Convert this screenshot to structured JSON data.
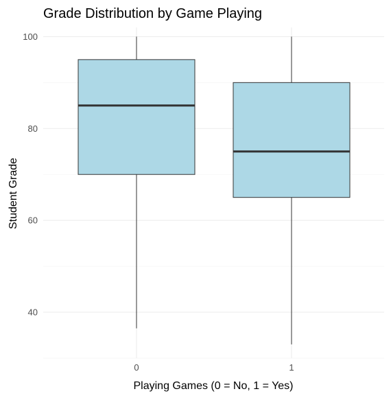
{
  "chart_data": {
    "type": "box",
    "title": "Grade Distribution by Game Playing",
    "xlabel": "Playing Games (0 = No, 1 = Yes)",
    "ylabel": "Student Grade",
    "categories": [
      "0",
      "1"
    ],
    "boxes": [
      {
        "category": "0",
        "min": 36.5,
        "q1": 70,
        "median": 85,
        "q3": 95,
        "max": 100
      },
      {
        "category": "1",
        "min": 33,
        "q1": 65,
        "median": 75,
        "q3": 90,
        "max": 100
      }
    ],
    "ylim": [
      30,
      102
    ],
    "yticks": [
      40,
      60,
      80,
      100
    ],
    "grid": true,
    "colors": {
      "fill": "#add8e6",
      "stroke": "#333333",
      "grid": "#ebebeb"
    }
  }
}
